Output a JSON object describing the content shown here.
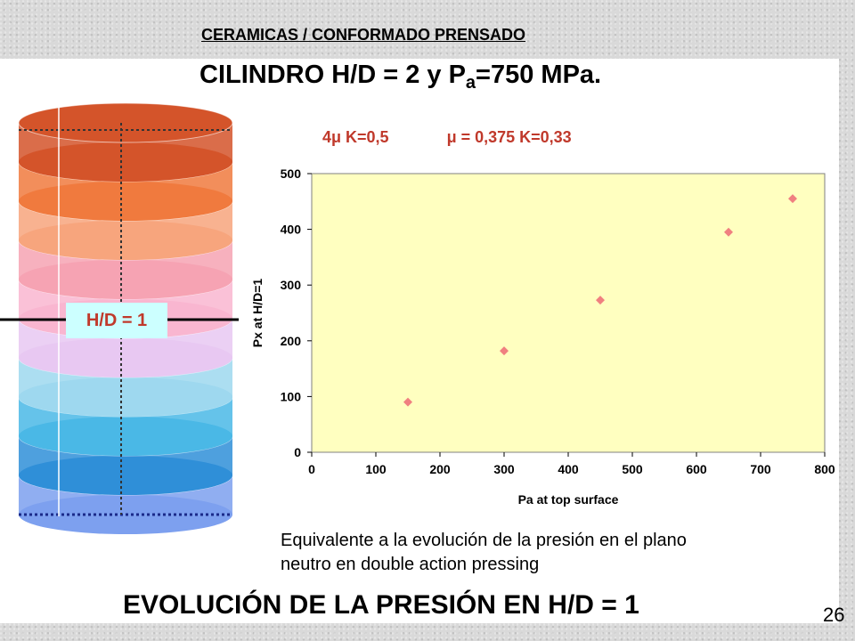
{
  "header": {
    "section_title": "CERAMICAS / CONFORMADO PRENSADO"
  },
  "title": {
    "prefix": "CILINDRO H/D =  2 y P",
    "subscript": "a",
    "suffix": "=750 MPa."
  },
  "params": {
    "first": "4μ  K=0,5",
    "second": "μ = 0,375  K=0,33"
  },
  "cylinder": {
    "label": "H/D = 1",
    "layer_colors": [
      "#d4542a",
      "#f07a3e",
      "#f7a57d",
      "#f6a3b3",
      "#f9b6d0",
      "#e8c8f2",
      "#9ed8ef",
      "#4ab8e6",
      "#2f8fd8",
      "#7da0ef"
    ]
  },
  "chart_data": {
    "type": "scatter",
    "title": "",
    "xlabel": "Pa at top surface",
    "ylabel": "Px at H/D=1",
    "xlim": [
      0,
      800
    ],
    "ylim": [
      0,
      500
    ],
    "x_ticks": [
      "0",
      "100",
      "200",
      "300",
      "400",
      "500",
      "600",
      "700",
      "800"
    ],
    "y_ticks": [
      "0",
      "100",
      "200",
      "300",
      "400",
      "500"
    ],
    "grid": false,
    "series": [
      {
        "x": [
          150,
          300,
          450,
          650,
          750
        ],
        "y": [
          90,
          182,
          273,
          395,
          455
        ]
      }
    ],
    "colors": {
      "plot_background": "#ffffc0",
      "marker": "#f08080"
    }
  },
  "caption": {
    "line1": "Equivalente a la evolución de la presión en el plano",
    "line2": "neutro en double action pressing"
  },
  "footer": {
    "title": "EVOLUCIÓN DE LA PRESIÓN EN H/D = 1",
    "page_number": "26"
  }
}
